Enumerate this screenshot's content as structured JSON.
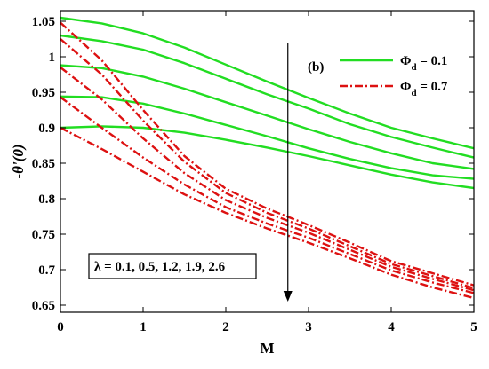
{
  "chart_data": {
    "type": "line",
    "panel_label": "(b)",
    "xlabel": "M",
    "ylabel": "-θ'(0)",
    "xlim": [
      0,
      5
    ],
    "ylim": [
      0.64,
      1.065
    ],
    "xticks": [
      0,
      1,
      2,
      3,
      4,
      5
    ],
    "xtick_labels": [
      "0",
      "1",
      "2",
      "3",
      "4",
      "5"
    ],
    "yticks": [
      0.65,
      0.7,
      0.75,
      0.8,
      0.85,
      0.9,
      0.95,
      1.0,
      1.05
    ],
    "ytick_labels": [
      "0.65",
      "0.7",
      "0.75",
      "0.8",
      "0.85",
      "0.9",
      "0.95",
      "1",
      "1.05"
    ],
    "grid": false,
    "legend": {
      "placement": "top-right",
      "entries": [
        {
          "symbol": "Φ",
          "subscript": "d",
          "suffix": " = 0.1",
          "color": "#22dd22",
          "style": "solid"
        },
        {
          "symbol": "Φ",
          "subscript": "d",
          "suffix": " = 0.7",
          "color": "#dd1111",
          "style": "dashdot"
        }
      ]
    },
    "annotation": {
      "text": "λ = 0.1, 0.5, 1.2, 1.9, 2.6",
      "arrow_x": 2.75,
      "arrow_from_y": 1.02,
      "arrow_to_y": 0.655
    },
    "series": [
      {
        "name": "Φd = 0.1",
        "color": "#22dd22",
        "style": "solid",
        "x": [
          0,
          0.5,
          1,
          1.5,
          2,
          2.5,
          3,
          3.5,
          4,
          4.5,
          5
        ],
        "y": [
          1.055,
          1.047,
          1.033,
          1.013,
          0.989,
          0.965,
          0.942,
          0.92,
          0.9,
          0.885,
          0.871
        ]
      },
      {
        "name": "Φd = 0.1",
        "color": "#22dd22",
        "style": "solid",
        "x": [
          0,
          0.5,
          1,
          1.5,
          2,
          2.5,
          3,
          3.5,
          4,
          4.5,
          5
        ],
        "y": [
          1.03,
          1.022,
          1.01,
          0.991,
          0.969,
          0.947,
          0.927,
          0.905,
          0.887,
          0.872,
          0.858
        ]
      },
      {
        "name": "Φd = 0.1",
        "color": "#22dd22",
        "style": "solid",
        "x": [
          0,
          0.5,
          1,
          1.5,
          2,
          2.5,
          3,
          3.5,
          4,
          4.5,
          5
        ],
        "y": [
          0.988,
          0.984,
          0.972,
          0.955,
          0.936,
          0.917,
          0.898,
          0.88,
          0.864,
          0.85,
          0.842
        ]
      },
      {
        "name": "Φd = 0.1",
        "color": "#22dd22",
        "style": "solid",
        "x": [
          0,
          0.5,
          1,
          1.5,
          2,
          2.5,
          3,
          3.5,
          4,
          4.5,
          5
        ],
        "y": [
          0.944,
          0.943,
          0.934,
          0.92,
          0.904,
          0.888,
          0.871,
          0.856,
          0.843,
          0.833,
          0.828
        ]
      },
      {
        "name": "Φd = 0.1",
        "color": "#22dd22",
        "style": "solid",
        "x": [
          0,
          0.5,
          1,
          1.5,
          2,
          2.5,
          3,
          3.5,
          4,
          4.5,
          5
        ],
        "y": [
          0.9,
          0.902,
          0.9,
          0.893,
          0.883,
          0.872,
          0.86,
          0.847,
          0.834,
          0.823,
          0.815
        ]
      },
      {
        "name": "Φd = 0.7",
        "color": "#dd1111",
        "style": "dashdot",
        "x": [
          0,
          0.5,
          1,
          1.5,
          2,
          2.5,
          3,
          3.5,
          4,
          4.5,
          5
        ],
        "y": [
          1.048,
          0.995,
          0.925,
          0.86,
          0.814,
          0.786,
          0.763,
          0.738,
          0.712,
          0.695,
          0.678
        ]
      },
      {
        "name": "Φd = 0.7",
        "color": "#dd1111",
        "style": "dashdot",
        "x": [
          0,
          0.5,
          1,
          1.5,
          2,
          2.5,
          3,
          3.5,
          4,
          4.5,
          5
        ],
        "y": [
          1.025,
          0.975,
          0.91,
          0.852,
          0.808,
          0.78,
          0.758,
          0.733,
          0.708,
          0.691,
          0.674
        ]
      },
      {
        "name": "Φd = 0.7",
        "color": "#dd1111",
        "style": "dashdot",
        "x": [
          0,
          0.5,
          1,
          1.5,
          2,
          2.5,
          3,
          3.5,
          4,
          4.5,
          5
        ],
        "y": [
          0.985,
          0.94,
          0.885,
          0.836,
          0.798,
          0.773,
          0.752,
          0.728,
          0.704,
          0.687,
          0.671
        ]
      },
      {
        "name": "Φd = 0.7",
        "color": "#dd1111",
        "style": "dashdot",
        "x": [
          0,
          0.5,
          1,
          1.5,
          2,
          2.5,
          3,
          3.5,
          4,
          4.5,
          5
        ],
        "y": [
          0.943,
          0.9,
          0.858,
          0.82,
          0.788,
          0.765,
          0.745,
          0.722,
          0.699,
          0.682,
          0.667
        ]
      },
      {
        "name": "Φd = 0.7",
        "color": "#dd1111",
        "style": "dashdot",
        "x": [
          0,
          0.5,
          1,
          1.5,
          2,
          2.5,
          3,
          3.5,
          4,
          4.5,
          5
        ],
        "y": [
          0.9,
          0.87,
          0.838,
          0.806,
          0.78,
          0.758,
          0.738,
          0.716,
          0.693,
          0.675,
          0.66
        ]
      }
    ]
  }
}
